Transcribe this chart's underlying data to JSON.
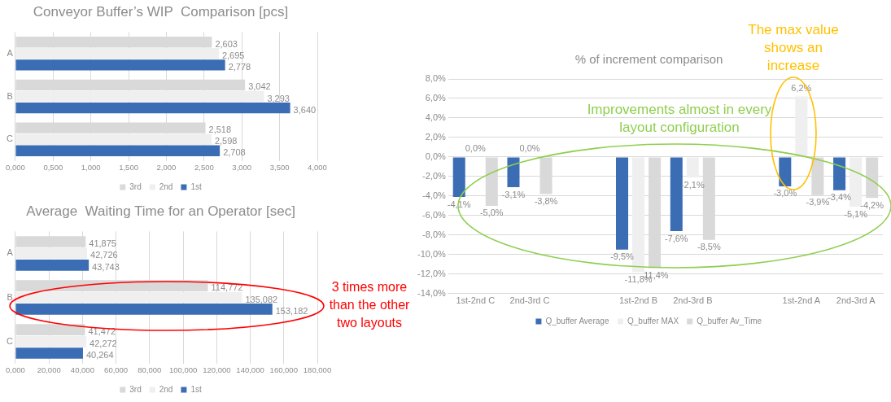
{
  "chart_data": [
    {
      "type": "bar",
      "orientation": "horizontal",
      "title": "Conveyor Buffer’s WIP  Comparison [pcs]",
      "categories": [
        "A",
        "B",
        "C"
      ],
      "series": [
        {
          "name": "3rd",
          "color": "#d9d9d9",
          "values": [
            2.603,
            3.042,
            2.518
          ],
          "value_labels": [
            "2,603",
            "3,042",
            "2,518"
          ]
        },
        {
          "name": "2nd",
          "color": "#efefef",
          "values": [
            2.695,
            3.293,
            2.598
          ],
          "value_labels": [
            "2,695",
            "3,293",
            "2,598"
          ]
        },
        {
          "name": "1st",
          "color": "#3b6db4",
          "values": [
            2.778,
            3.64,
            2.708
          ],
          "value_labels": [
            "2,778",
            "3,640",
            "2,708"
          ]
        }
      ],
      "xlim": [
        0,
        4
      ],
      "xticks": [
        {
          "value": 0,
          "label": "0,000"
        },
        {
          "value": 0.5,
          "label": "0,500"
        },
        {
          "value": 1,
          "label": "1,000"
        },
        {
          "value": 1.5,
          "label": "1,500"
        },
        {
          "value": 2,
          "label": "2,000"
        },
        {
          "value": 2.5,
          "label": "2,500"
        },
        {
          "value": 3,
          "label": "3,000"
        },
        {
          "value": 3.5,
          "label": "3,500"
        },
        {
          "value": 4,
          "label": "4,000"
        }
      ],
      "grid": "x",
      "legend": "bottom"
    },
    {
      "type": "bar",
      "orientation": "horizontal",
      "title": "Average  Waiting Time for an Operator [sec]",
      "categories": [
        "A",
        "B",
        "C"
      ],
      "series": [
        {
          "name": "3rd",
          "color": "#d9d9d9",
          "values": [
            41.875,
            114.772,
            41.472
          ],
          "value_labels": [
            "41,875",
            "114,772",
            "41,472"
          ]
        },
        {
          "name": "2nd",
          "color": "#efefef",
          "values": [
            42.726,
            135.082,
            42.272
          ],
          "value_labels": [
            "42,726",
            "135,082",
            "42,272"
          ]
        },
        {
          "name": "1st",
          "color": "#3b6db4",
          "values": [
            43.743,
            153.182,
            40.264
          ],
          "value_labels": [
            "43,743",
            "153,182",
            "40,264"
          ]
        }
      ],
      "xlim": [
        0,
        180
      ],
      "xticks": [
        {
          "value": 0,
          "label": "0,000"
        },
        {
          "value": 20,
          "label": "20,000"
        },
        {
          "value": 40,
          "label": "40,000"
        },
        {
          "value": 60,
          "label": "60,000"
        },
        {
          "value": 80,
          "label": "80,000"
        },
        {
          "value": 100,
          "label": "100,000"
        },
        {
          "value": 120,
          "label": "120,000"
        },
        {
          "value": 140,
          "label": "140,000"
        },
        {
          "value": 160,
          "label": "160,000"
        },
        {
          "value": 180,
          "label": "180,000"
        }
      ],
      "grid": "x",
      "legend": "bottom",
      "annotations": [
        "3 times more than the other two layouts"
      ]
    },
    {
      "type": "bar",
      "title": "% of increment comparison",
      "categories": [
        "1st-2nd C",
        "2nd-3rd C",
        null,
        "1st-2nd B",
        "2nd-3rd B",
        null,
        "1st-2nd A",
        "2nd-3rd A"
      ],
      "series": [
        {
          "name": "Q_buffer Average",
          "color": "#3b6db4",
          "values": [
            -4.1,
            -3.1,
            null,
            -9.5,
            -7.6,
            null,
            -3.0,
            -3.4
          ],
          "value_labels": [
            "-4,1%",
            "-3,1%",
            null,
            "-9,5%",
            "-7,6%",
            null,
            "-3,0%",
            "-3,4%"
          ]
        },
        {
          "name": "Q_buffer MAX",
          "color": "#efefef",
          "values": [
            0.0,
            0.0,
            null,
            -11.8,
            -2.1,
            null,
            6.2,
            -5.1
          ],
          "value_labels": [
            "0,0%",
            "0,0%",
            null,
            "-11,8%",
            "-2,1%",
            null,
            "6,2%",
            "-5,1%"
          ]
        },
        {
          "name": "Q_buffer Av_Time",
          "color": "#d9d9d9",
          "values": [
            -5.0,
            -3.8,
            null,
            -11.4,
            -8.5,
            null,
            -3.9,
            -4.2
          ],
          "value_labels": [
            "-5,0%",
            "-3,8%",
            null,
            "-11,4%",
            "-8,5%",
            null,
            "-3,9%",
            "-4,2%"
          ]
        }
      ],
      "ylim": [
        -14,
        8
      ],
      "yticks": [
        {
          "value": -14,
          "label": "-14,0%"
        },
        {
          "value": -12,
          "label": "-12,0%"
        },
        {
          "value": -10,
          "label": "-10,0%"
        },
        {
          "value": -8,
          "label": "-8,0%"
        },
        {
          "value": -6,
          "label": "-6,0%"
        },
        {
          "value": -4,
          "label": "-4,0%"
        },
        {
          "value": -2,
          "label": "-2,0%"
        },
        {
          "value": 0,
          "label": "0,0%"
        },
        {
          "value": 2,
          "label": "2,0%"
        },
        {
          "value": 4,
          "label": "4,0%"
        },
        {
          "value": 6,
          "label": "6,0%"
        },
        {
          "value": 8,
          "label": "8,0%"
        }
      ],
      "grid": "y",
      "legend": "bottom",
      "annotations": [
        "Improvements almost in every layout configuration",
        "The max value shows an increase"
      ]
    }
  ]
}
